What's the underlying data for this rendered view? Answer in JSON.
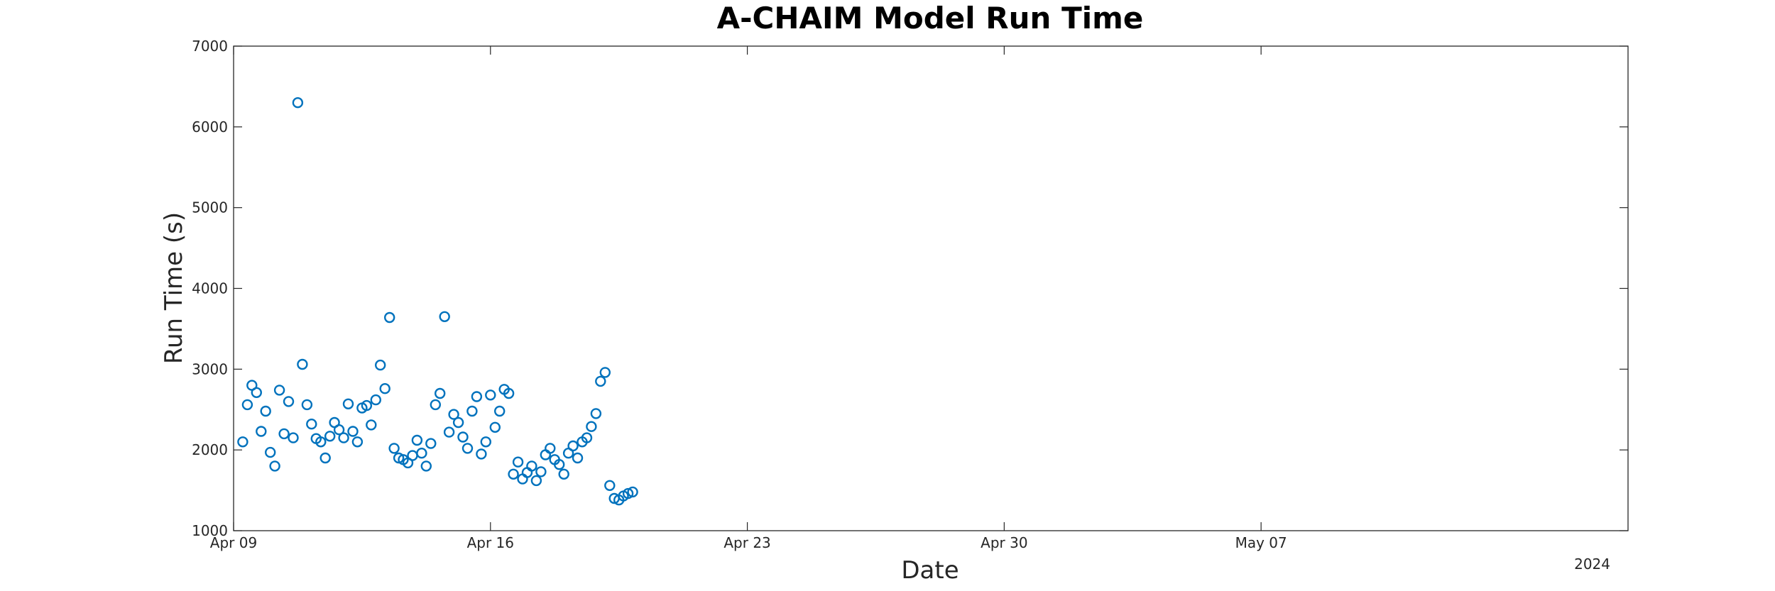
{
  "chart_data": {
    "type": "scatter",
    "title": "A-CHAIM Model Run Time",
    "xlabel": "Date",
    "ylabel": "Run Time (s)",
    "year_label": "2024",
    "xlim": [
      "2024-04-09",
      "2024-05-17"
    ],
    "ylim": [
      1000,
      7000
    ],
    "yticks": [
      1000,
      2000,
      3000,
      4000,
      5000,
      6000,
      7000
    ],
    "xticks": [
      {
        "date": "2024-04-09",
        "label": "Apr 09"
      },
      {
        "date": "2024-04-16",
        "label": "Apr 16"
      },
      {
        "date": "2024-04-23",
        "label": "Apr 23"
      },
      {
        "date": "2024-04-30",
        "label": "Apr 30"
      },
      {
        "date": "2024-05-07",
        "label": "May 07"
      }
    ],
    "grid": false,
    "marker": "circle",
    "colors": {
      "marker": "#0072BD",
      "axis": "#262626"
    },
    "series": [
      {
        "points": [
          [
            "2024-04-09 06:00",
            2100
          ],
          [
            "2024-04-09 09:00",
            2560
          ],
          [
            "2024-04-09 12:00",
            2800
          ],
          [
            "2024-04-09 15:00",
            2710
          ],
          [
            "2024-04-09 18:00",
            2230
          ],
          [
            "2024-04-09 21:00",
            2480
          ],
          [
            "2024-04-10 00:00",
            1970
          ],
          [
            "2024-04-10 03:00",
            1800
          ],
          [
            "2024-04-10 06:00",
            2740
          ],
          [
            "2024-04-10 09:00",
            2200
          ],
          [
            "2024-04-10 12:00",
            2600
          ],
          [
            "2024-04-10 15:00",
            2150
          ],
          [
            "2024-04-10 18:00",
            6300
          ],
          [
            "2024-04-10 21:00",
            3060
          ],
          [
            "2024-04-11 00:00",
            2560
          ],
          [
            "2024-04-11 03:00",
            2320
          ],
          [
            "2024-04-11 06:00",
            2140
          ],
          [
            "2024-04-11 09:00",
            2100
          ],
          [
            "2024-04-11 12:00",
            1900
          ],
          [
            "2024-04-11 15:00",
            2170
          ],
          [
            "2024-04-11 18:00",
            2340
          ],
          [
            "2024-04-11 21:00",
            2250
          ],
          [
            "2024-04-12 00:00",
            2150
          ],
          [
            "2024-04-12 03:00",
            2570
          ],
          [
            "2024-04-12 06:00",
            2230
          ],
          [
            "2024-04-12 09:00",
            2100
          ],
          [
            "2024-04-12 12:00",
            2520
          ],
          [
            "2024-04-12 15:00",
            2550
          ],
          [
            "2024-04-12 18:00",
            2310
          ],
          [
            "2024-04-12 21:00",
            2620
          ],
          [
            "2024-04-13 00:00",
            3050
          ],
          [
            "2024-04-13 03:00",
            2760
          ],
          [
            "2024-04-13 06:00",
            3640
          ],
          [
            "2024-04-13 09:00",
            2020
          ],
          [
            "2024-04-13 12:00",
            1900
          ],
          [
            "2024-04-13 15:00",
            1880
          ],
          [
            "2024-04-13 18:00",
            1840
          ],
          [
            "2024-04-13 21:00",
            1930
          ],
          [
            "2024-04-14 00:00",
            2120
          ],
          [
            "2024-04-14 03:00",
            1960
          ],
          [
            "2024-04-14 06:00",
            1800
          ],
          [
            "2024-04-14 09:00",
            2080
          ],
          [
            "2024-04-14 12:00",
            2560
          ],
          [
            "2024-04-14 15:00",
            2700
          ],
          [
            "2024-04-14 18:00",
            3650
          ],
          [
            "2024-04-14 21:00",
            2220
          ],
          [
            "2024-04-15 00:00",
            2440
          ],
          [
            "2024-04-15 03:00",
            2340
          ],
          [
            "2024-04-15 06:00",
            2160
          ],
          [
            "2024-04-15 09:00",
            2020
          ],
          [
            "2024-04-15 12:00",
            2480
          ],
          [
            "2024-04-15 15:00",
            2660
          ],
          [
            "2024-04-15 18:00",
            1950
          ],
          [
            "2024-04-15 21:00",
            2100
          ],
          [
            "2024-04-16 00:00",
            2680
          ],
          [
            "2024-04-16 03:00",
            2280
          ],
          [
            "2024-04-16 06:00",
            2480
          ],
          [
            "2024-04-16 09:00",
            2750
          ],
          [
            "2024-04-16 12:00",
            2700
          ],
          [
            "2024-04-16 15:00",
            1700
          ],
          [
            "2024-04-16 18:00",
            1850
          ],
          [
            "2024-04-16 21:00",
            1640
          ],
          [
            "2024-04-17 00:00",
            1720
          ],
          [
            "2024-04-17 03:00",
            1800
          ],
          [
            "2024-04-17 06:00",
            1620
          ],
          [
            "2024-04-17 09:00",
            1730
          ],
          [
            "2024-04-17 12:00",
            1940
          ],
          [
            "2024-04-17 15:00",
            2020
          ],
          [
            "2024-04-17 18:00",
            1880
          ],
          [
            "2024-04-17 21:00",
            1820
          ],
          [
            "2024-04-18 00:00",
            1700
          ],
          [
            "2024-04-18 03:00",
            1960
          ],
          [
            "2024-04-18 06:00",
            2050
          ],
          [
            "2024-04-18 09:00",
            1900
          ],
          [
            "2024-04-18 12:00",
            2100
          ],
          [
            "2024-04-18 15:00",
            2150
          ],
          [
            "2024-04-18 18:00",
            2290
          ],
          [
            "2024-04-18 21:00",
            2450
          ],
          [
            "2024-04-19 00:00",
            2850
          ],
          [
            "2024-04-19 03:00",
            2960
          ],
          [
            "2024-04-19 06:00",
            1560
          ],
          [
            "2024-04-19 09:00",
            1400
          ],
          [
            "2024-04-19 12:00",
            1380
          ],
          [
            "2024-04-19 15:00",
            1430
          ],
          [
            "2024-04-19 18:00",
            1460
          ],
          [
            "2024-04-19 21:00",
            1480
          ]
        ]
      }
    ]
  }
}
